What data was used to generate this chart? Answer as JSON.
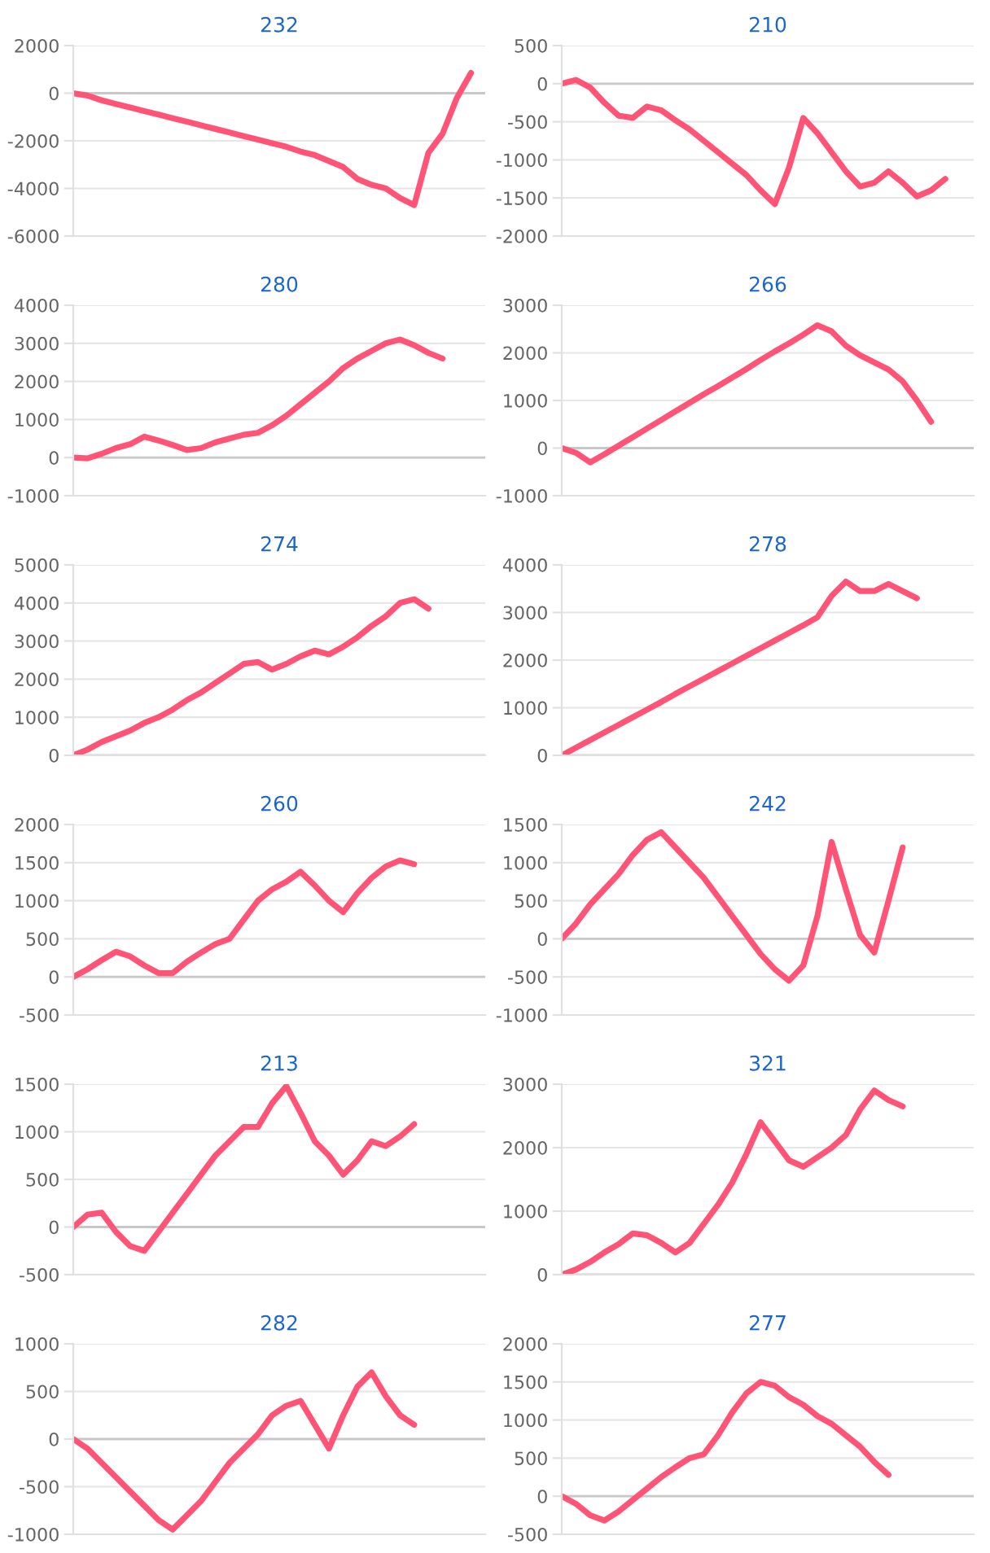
{
  "chart_data": [
    {
      "type": "line",
      "title": "232",
      "categories": [
        null,
        null,
        null,
        null,
        null,
        null,
        null,
        null,
        null,
        null,
        null,
        null,
        null,
        null,
        null,
        null,
        null,
        null,
        null,
        null,
        null,
        null,
        null,
        null,
        null,
        null,
        null,
        null,
        null,
        null
      ],
      "series": [
        {
          "color": "#ff5475",
          "values": [
            0,
            -100,
            -300,
            -450,
            -600,
            -750,
            -900,
            -1050,
            -1200,
            -1350,
            -1500,
            -1650,
            -1800,
            -1950,
            -2100,
            -2250,
            -2450,
            -2600,
            -2850,
            -3100,
            -3600,
            -3850,
            -4000,
            -4400,
            -4700,
            -2500,
            -1700,
            -200,
            850,
            null
          ]
        }
      ],
      "ylim": [
        -6000,
        2000
      ],
      "yticks": [
        -6000,
        -4000,
        -2000,
        0,
        2000
      ],
      "grid": "y",
      "tick_labels": "y"
    },
    {
      "type": "line",
      "title": "210",
      "categories": [
        null,
        null,
        null,
        null,
        null,
        null,
        null,
        null,
        null,
        null,
        null,
        null,
        null,
        null,
        null,
        null,
        null,
        null,
        null,
        null,
        null,
        null,
        null,
        null,
        null,
        null,
        null,
        null,
        null,
        null
      ],
      "series": [
        {
          "color": "#ff5475",
          "values": [
            0,
            50,
            -50,
            -250,
            -420,
            -450,
            -300,
            -350,
            -480,
            -600,
            -750,
            -900,
            -1050,
            -1200,
            -1400,
            -1580,
            -1100,
            -450,
            -650,
            -900,
            -1150,
            -1350,
            -1300,
            -1150,
            -1300,
            -1480,
            -1400,
            -1250,
            null,
            null
          ]
        }
      ],
      "ylim": [
        -2000,
        500
      ],
      "yticks": [
        -2000,
        -1500,
        -1000,
        -500,
        0,
        500
      ],
      "grid": "y",
      "tick_labels": "y"
    },
    {
      "type": "line",
      "title": "280",
      "categories": [
        null,
        null,
        null,
        null,
        null,
        null,
        null,
        null,
        null,
        null,
        null,
        null,
        null,
        null,
        null,
        null,
        null,
        null,
        null,
        null,
        null,
        null,
        null,
        null,
        null,
        null,
        null,
        null,
        null,
        null
      ],
      "series": [
        {
          "color": "#ff5475",
          "values": [
            0,
            -20,
            100,
            250,
            350,
            550,
            450,
            330,
            200,
            250,
            400,
            500,
            600,
            650,
            850,
            1100,
            1400,
            1700,
            2000,
            2350,
            2600,
            2800,
            3000,
            3100,
            2950,
            2750,
            2600,
            null,
            null,
            null
          ]
        }
      ],
      "ylim": [
        -1000,
        4000
      ],
      "yticks": [
        -1000,
        0,
        1000,
        2000,
        3000,
        4000
      ],
      "grid": "y",
      "tick_labels": "y"
    },
    {
      "type": "line",
      "title": "266",
      "categories": [
        null,
        null,
        null,
        null,
        null,
        null,
        null,
        null,
        null,
        null,
        null,
        null,
        null,
        null,
        null,
        null,
        null,
        null,
        null,
        null,
        null,
        null,
        null,
        null,
        null,
        null,
        null,
        null,
        null,
        null
      ],
      "series": [
        {
          "color": "#ff5475",
          "values": [
            0,
            -100,
            -300,
            -130,
            50,
            230,
            410,
            590,
            770,
            950,
            1130,
            1300,
            1480,
            1660,
            1850,
            2030,
            2200,
            2380,
            2580,
            2450,
            2150,
            1950,
            1800,
            1650,
            1400,
            1000,
            550,
            null,
            null,
            null
          ]
        }
      ],
      "ylim": [
        -1000,
        3000
      ],
      "yticks": [
        -1000,
        0,
        1000,
        2000,
        3000
      ],
      "grid": "y",
      "tick_labels": "y"
    },
    {
      "type": "line",
      "title": "274",
      "categories": [
        null,
        null,
        null,
        null,
        null,
        null,
        null,
        null,
        null,
        null,
        null,
        null,
        null,
        null,
        null,
        null,
        null,
        null,
        null,
        null,
        null,
        null,
        null,
        null,
        null,
        null,
        null,
        null,
        null,
        null
      ],
      "series": [
        {
          "color": "#ff5475",
          "values": [
            0,
            150,
            350,
            500,
            650,
            850,
            1000,
            1200,
            1450,
            1650,
            1900,
            2150,
            2400,
            2450,
            2250,
            2400,
            2600,
            2750,
            2650,
            2850,
            3100,
            3400,
            3650,
            4000,
            4100,
            3850,
            null,
            null,
            null,
            null
          ]
        }
      ],
      "ylim": [
        0,
        5000
      ],
      "yticks": [
        0,
        1000,
        2000,
        3000,
        4000,
        5000
      ],
      "grid": "y",
      "tick_labels": "y"
    },
    {
      "type": "line",
      "title": "278",
      "categories": [
        null,
        null,
        null,
        null,
        null,
        null,
        null,
        null,
        null,
        null,
        null,
        null,
        null,
        null,
        null,
        null,
        null,
        null,
        null,
        null,
        null,
        null,
        null,
        null,
        null,
        null,
        null,
        null,
        null,
        null
      ],
      "series": [
        {
          "color": "#ff5475",
          "values": [
            0,
            160,
            320,
            480,
            640,
            800,
            960,
            1120,
            1290,
            1450,
            1610,
            1770,
            1930,
            2090,
            2250,
            2410,
            2570,
            2730,
            2900,
            3350,
            3650,
            3450,
            3450,
            3600,
            3450,
            3300,
            null,
            null,
            null,
            null
          ]
        }
      ],
      "ylim": [
        0,
        4000
      ],
      "yticks": [
        0,
        1000,
        2000,
        3000,
        4000
      ],
      "grid": "y",
      "tick_labels": "y"
    },
    {
      "type": "line",
      "title": "260",
      "categories": [
        null,
        null,
        null,
        null,
        null,
        null,
        null,
        null,
        null,
        null,
        null,
        null,
        null,
        null,
        null,
        null,
        null,
        null,
        null,
        null,
        null,
        null,
        null,
        null,
        null,
        null,
        null,
        null,
        null,
        null
      ],
      "series": [
        {
          "color": "#ff5475",
          "values": [
            0,
            100,
            220,
            330,
            270,
            150,
            50,
            50,
            200,
            320,
            430,
            500,
            750,
            1000,
            1150,
            1250,
            1380,
            1200,
            1000,
            850,
            1100,
            1300,
            1450,
            1530,
            1480,
            null,
            null,
            null,
            null,
            null
          ]
        }
      ],
      "ylim": [
        -500,
        2000
      ],
      "yticks": [
        -500,
        0,
        500,
        1000,
        1500,
        2000
      ],
      "grid": "y",
      "tick_labels": "y"
    },
    {
      "type": "line",
      "title": "242",
      "categories": [
        null,
        null,
        null,
        null,
        null,
        null,
        null,
        null,
        null,
        null,
        null,
        null,
        null,
        null,
        null,
        null,
        null,
        null,
        null,
        null,
        null,
        null,
        null,
        null,
        null,
        null,
        null,
        null,
        null,
        null
      ],
      "series": [
        {
          "color": "#ff5475",
          "values": [
            0,
            200,
            450,
            650,
            850,
            1100,
            1300,
            1400,
            1200,
            1000,
            800,
            550,
            300,
            50,
            -200,
            -400,
            -550,
            -350,
            300,
            1270,
            650,
            50,
            -180,
            500,
            1200,
            null,
            null,
            null,
            null,
            null
          ]
        }
      ],
      "ylim": [
        -1000,
        1500
      ],
      "yticks": [
        -1000,
        -500,
        0,
        500,
        1000,
        1500
      ],
      "grid": "y",
      "tick_labels": "y"
    },
    {
      "type": "line",
      "title": "213",
      "categories": [
        null,
        null,
        null,
        null,
        null,
        null,
        null,
        null,
        null,
        null,
        null,
        null,
        null,
        null,
        null,
        null,
        null,
        null,
        null,
        null,
        null,
        null,
        null,
        null,
        null,
        null,
        null,
        null,
        null,
        null
      ],
      "series": [
        {
          "color": "#ff5475",
          "values": [
            0,
            130,
            150,
            -50,
            -200,
            -250,
            -50,
            150,
            350,
            550,
            750,
            900,
            1050,
            1050,
            1300,
            1480,
            1200,
            900,
            750,
            550,
            700,
            900,
            850,
            950,
            1080,
            null,
            null,
            null,
            null,
            null
          ]
        }
      ],
      "ylim": [
        -500,
        1500
      ],
      "yticks": [
        -500,
        0,
        500,
        1000,
        1500
      ],
      "grid": "y",
      "tick_labels": "y"
    },
    {
      "type": "line",
      "title": "321",
      "categories": [
        null,
        null,
        null,
        null,
        null,
        null,
        null,
        null,
        null,
        null,
        null,
        null,
        null,
        null,
        null,
        null,
        null,
        null,
        null,
        null,
        null,
        null,
        null,
        null,
        null,
        null,
        null,
        null,
        null,
        null
      ],
      "series": [
        {
          "color": "#ff5475",
          "values": [
            0,
            80,
            200,
            350,
            480,
            650,
            620,
            500,
            350,
            500,
            800,
            1100,
            1450,
            1900,
            2400,
            2100,
            1800,
            1700,
            1850,
            2000,
            2200,
            2600,
            2900,
            2750,
            2650,
            null,
            null,
            null,
            null,
            null
          ]
        }
      ],
      "ylim": [
        0,
        3000
      ],
      "yticks": [
        0,
        1000,
        2000,
        3000
      ],
      "grid": "y",
      "tick_labels": "y"
    },
    {
      "type": "line",
      "title": "282",
      "categories": [
        null,
        null,
        null,
        null,
        null,
        null,
        null,
        null,
        null,
        null,
        null,
        null,
        null,
        null,
        null,
        null,
        null,
        null,
        null,
        null,
        null,
        null,
        null,
        null,
        null,
        null,
        null,
        null,
        null,
        null
      ],
      "series": [
        {
          "color": "#ff5475",
          "values": [
            0,
            -100,
            -250,
            -400,
            -550,
            -700,
            -850,
            -950,
            -800,
            -650,
            -450,
            -250,
            -100,
            50,
            250,
            350,
            400,
            150,
            -100,
            250,
            550,
            700,
            450,
            250,
            150,
            null,
            null,
            null,
            null,
            null
          ]
        }
      ],
      "ylim": [
        -1000,
        1000
      ],
      "yticks": [
        -1000,
        -500,
        0,
        500,
        1000
      ],
      "grid": "y",
      "tick_labels": "y"
    },
    {
      "type": "line",
      "title": "277",
      "categories": [
        null,
        null,
        null,
        null,
        null,
        null,
        null,
        null,
        null,
        null,
        null,
        null,
        null,
        null,
        null,
        null,
        null,
        null,
        null,
        null,
        null,
        null,
        null,
        null,
        null,
        null,
        null,
        null,
        null,
        null
      ],
      "series": [
        {
          "color": "#ff5475",
          "values": [
            0,
            -100,
            -250,
            -320,
            -200,
            -50,
            100,
            250,
            380,
            500,
            550,
            800,
            1100,
            1350,
            1500,
            1450,
            1300,
            1200,
            1050,
            950,
            800,
            650,
            450,
            280,
            null,
            null,
            null,
            null,
            null,
            null
          ]
        }
      ],
      "ylim": [
        -500,
        2000
      ],
      "yticks": [
        -500,
        0,
        500,
        1000,
        1500,
        2000
      ],
      "grid": "y",
      "tick_labels": "y"
    }
  ]
}
